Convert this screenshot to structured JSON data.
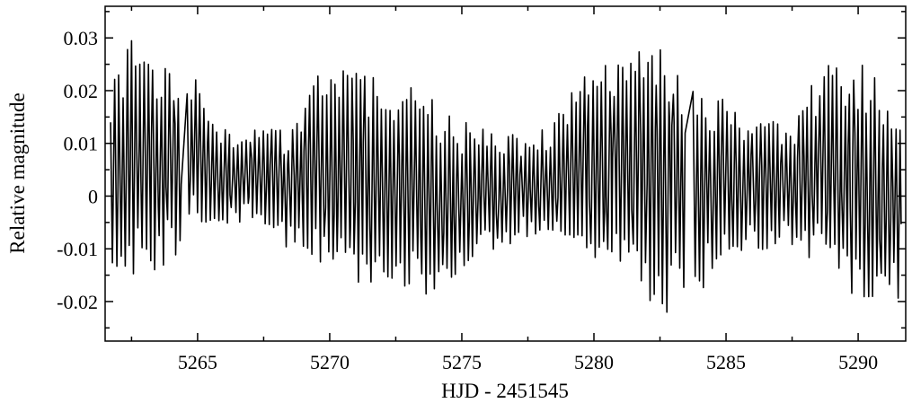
{
  "chart_data": {
    "type": "line",
    "title": "",
    "xlabel": "HJD - 2451545",
    "ylabel": "Relative magnitude",
    "xlim": [
      5261.5,
      5291.8
    ],
    "ylim": [
      -0.0275,
      0.036
    ],
    "x_ticks": [
      5265,
      5270,
      5275,
      5280,
      5285,
      5290
    ],
    "x_tick_labels": [
      "5265",
      "5270",
      "5275",
      "5280",
      "5285",
      "5290"
    ],
    "y_ticks": [
      0.03,
      0.02,
      0.01,
      0,
      -0.01,
      -0.02
    ],
    "y_tick_labels": [
      "0.03",
      "0.02",
      "0.01",
      "0",
      "-0.01",
      "-0.02"
    ],
    "grid": false,
    "line_color": "#000000",
    "series": [
      {
        "observing_runs": [
          [
            5261.7,
            5264.35
          ],
          [
            5264.6,
            5283.45
          ],
          [
            5283.75,
            5291.6
          ]
        ],
        "period_days": 0.16,
        "envelope": [
          {
            "x": 5261.7,
            "upper": 0.023,
            "lower": -0.017
          },
          {
            "x": 5262.6,
            "upper": 0.031,
            "lower": -0.016
          },
          {
            "x": 5263.5,
            "upper": 0.027,
            "lower": -0.015
          },
          {
            "x": 5264.35,
            "upper": 0.025,
            "lower": -0.011
          },
          {
            "x": 5264.6,
            "upper": 0.026,
            "lower": -0.005
          },
          {
            "x": 5265.5,
            "upper": 0.015,
            "lower": -0.009
          },
          {
            "x": 5266.5,
            "upper": 0.012,
            "lower": -0.005
          },
          {
            "x": 5267.5,
            "upper": 0.013,
            "lower": -0.005
          },
          {
            "x": 5268.5,
            "upper": 0.013,
            "lower": -0.011
          },
          {
            "x": 5269.5,
            "upper": 0.023,
            "lower": -0.013
          },
          {
            "x": 5270.5,
            "upper": 0.025,
            "lower": -0.017
          },
          {
            "x": 5271.5,
            "upper": 0.024,
            "lower": -0.018
          },
          {
            "x": 5272.5,
            "upper": 0.022,
            "lower": -0.019
          },
          {
            "x": 5273.5,
            "upper": 0.02,
            "lower": -0.019
          },
          {
            "x": 5274.5,
            "upper": 0.016,
            "lower": -0.017
          },
          {
            "x": 5275.5,
            "upper": 0.013,
            "lower": -0.013
          },
          {
            "x": 5276.5,
            "upper": 0.012,
            "lower": -0.01
          },
          {
            "x": 5277.5,
            "upper": 0.012,
            "lower": -0.008
          },
          {
            "x": 5278.5,
            "upper": 0.014,
            "lower": -0.008
          },
          {
            "x": 5279.5,
            "upper": 0.024,
            "lower": -0.011
          },
          {
            "x": 5280.5,
            "upper": 0.025,
            "lower": -0.015
          },
          {
            "x": 5281.5,
            "upper": 0.027,
            "lower": -0.019
          },
          {
            "x": 5282.5,
            "upper": 0.031,
            "lower": -0.023
          },
          {
            "x": 5283.45,
            "upper": 0.025,
            "lower": -0.02
          },
          {
            "x": 5283.75,
            "upper": 0.022,
            "lower": -0.02
          },
          {
            "x": 5284.5,
            "upper": 0.02,
            "lower": -0.016
          },
          {
            "x": 5285.5,
            "upper": 0.016,
            "lower": -0.012
          },
          {
            "x": 5286.5,
            "upper": 0.015,
            "lower": -0.01
          },
          {
            "x": 5287.5,
            "upper": 0.014,
            "lower": -0.01
          },
          {
            "x": 5288.5,
            "upper": 0.024,
            "lower": -0.013
          },
          {
            "x": 5289.5,
            "upper": 0.026,
            "lower": -0.018
          },
          {
            "x": 5290.5,
            "upper": 0.025,
            "lower": -0.021
          },
          {
            "x": 5291.5,
            "upper": 0.02,
            "lower": -0.02
          }
        ]
      }
    ]
  }
}
